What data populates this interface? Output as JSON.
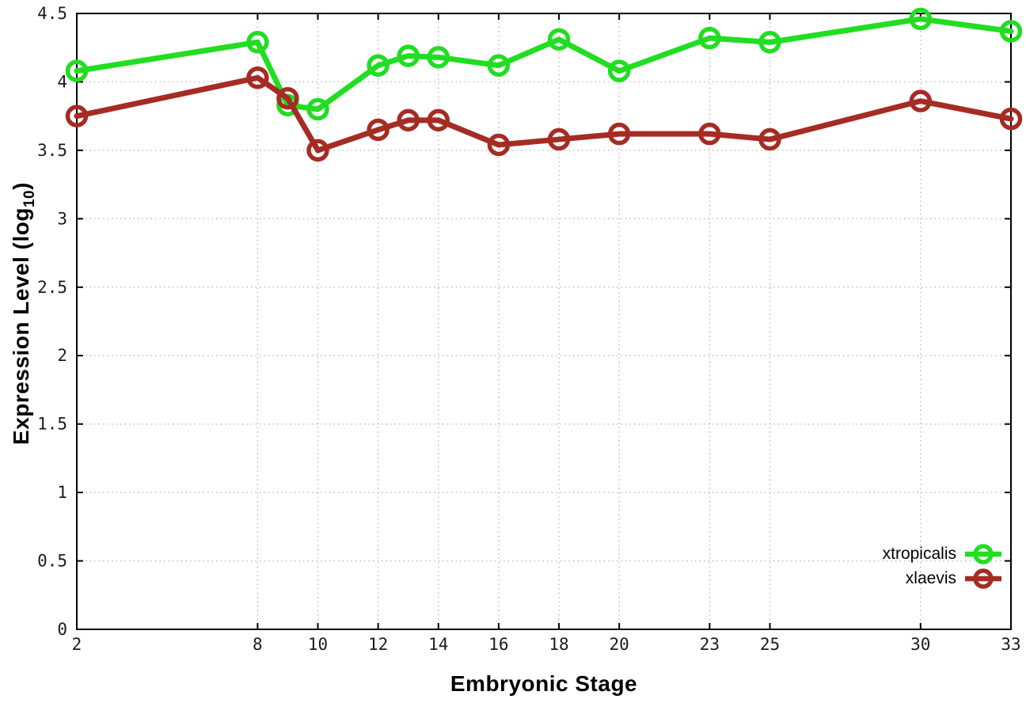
{
  "chart_data": {
    "type": "line",
    "title": "",
    "xlabel": "Embryonic Stage",
    "ylabel_prefix": "Expression Level (log",
    "ylabel_subscript": "10",
    "ylabel_suffix": ")",
    "x": [
      2,
      8,
      9,
      10,
      12,
      13,
      14,
      16,
      18,
      20,
      23,
      25,
      30,
      33
    ],
    "xlim": [
      2,
      33
    ],
    "ylim": [
      0,
      4.5
    ],
    "xticks": {
      "values": [
        2,
        8,
        10,
        12,
        14,
        16,
        18,
        20,
        23,
        25,
        30,
        33
      ],
      "labels": [
        "2",
        "8",
        "10",
        "12",
        "14",
        "16",
        "18",
        "20",
        "23",
        "25",
        "30",
        "33"
      ]
    },
    "yticks": {
      "values": [
        0,
        0.5,
        1,
        1.5,
        2,
        2.5,
        3,
        3.5,
        4,
        4.5
      ],
      "labels": [
        "0",
        "0.5",
        "1",
        "1.5",
        "2",
        "2.5",
        "3",
        "3.5",
        "4",
        "4.5"
      ]
    },
    "grid": true,
    "legend_position": "bottom-right",
    "series": [
      {
        "name": "xtropicalis",
        "color": "#22dd22",
        "marker": "open-circle",
        "values": [
          4.08,
          4.29,
          3.83,
          3.8,
          4.12,
          4.19,
          4.18,
          4.12,
          4.31,
          4.08,
          4.32,
          4.29,
          4.46,
          4.37
        ]
      },
      {
        "name": "xlaevis",
        "color": "#a52c24",
        "marker": "open-circle",
        "values": [
          3.75,
          4.03,
          3.88,
          3.5,
          3.65,
          3.72,
          3.72,
          3.54,
          3.58,
          3.62,
          3.62,
          3.58,
          3.86,
          3.73
        ]
      }
    ],
    "style": {
      "grid_color": "#bbbbbb",
      "axis_color": "#000000",
      "line_width": 7,
      "marker_radius": 11.5,
      "marker_stroke": 5.5
    }
  }
}
